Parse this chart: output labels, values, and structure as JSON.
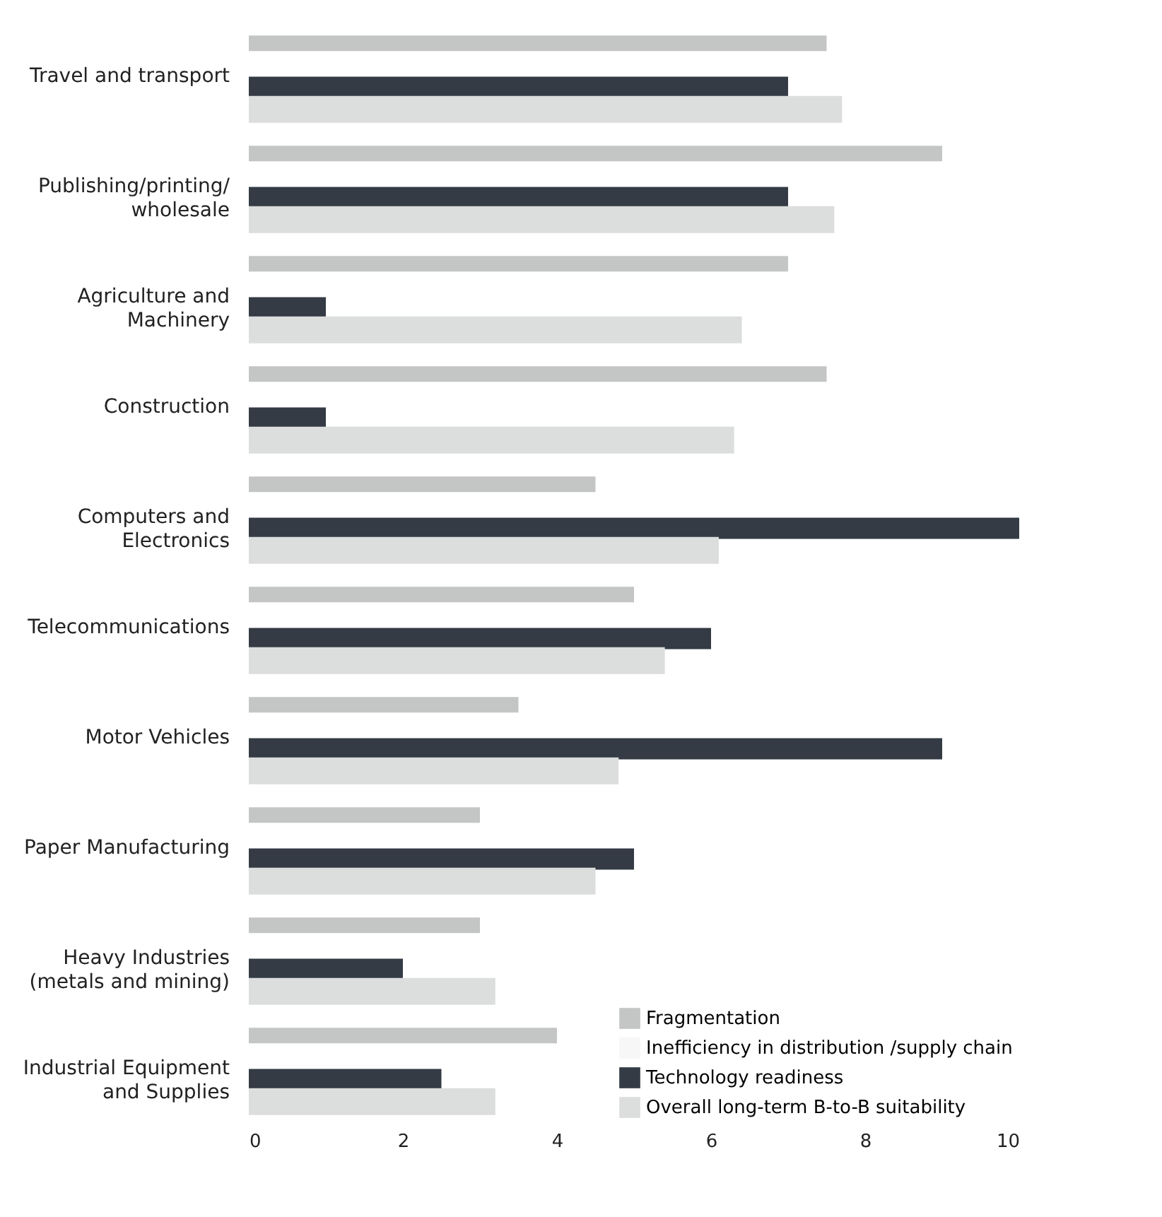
{
  "chart_data": {
    "type": "bar",
    "orientation": "horizontal",
    "categories": [
      "Travel and transport",
      "Publishing/printing/ wholesale",
      "Agriculture and Machinery",
      "Construction",
      "Computers and Electronics",
      "Telecommunications",
      "Motor Vehicles",
      "Paper Manufacturing",
      "Heavy Industries (metals and mining)",
      "Industrial Equipment and Supplies"
    ],
    "series": [
      {
        "name": "Fragmentation",
        "color": "#c4c6c6",
        "values": [
          7.5,
          9,
          7,
          7.5,
          4.5,
          5,
          3.5,
          3,
          3,
          4
        ]
      },
      {
        "name": "Inefficiency in distribution /supply chain",
        "color": "#f7f7f7",
        "values": [
          null,
          null,
          null,
          null,
          null,
          null,
          null,
          null,
          null,
          null
        ]
      },
      {
        "name": "Technology readiness",
        "color": "#343b45",
        "values": [
          7,
          7,
          1,
          1,
          10,
          6,
          9,
          5,
          2,
          2.5
        ]
      },
      {
        "name": "Overall long-term B-to-B suitability",
        "color": "#dcdedd",
        "values": [
          7.7,
          7.6,
          6.4,
          6.3,
          6.1,
          5.4,
          4.8,
          4.5,
          3.2,
          3.2
        ]
      }
    ],
    "xlim": [
      0,
      10
    ],
    "xticks": [
      0,
      2,
      4,
      6,
      8,
      10
    ],
    "grid": false,
    "legend": "bottom right"
  }
}
